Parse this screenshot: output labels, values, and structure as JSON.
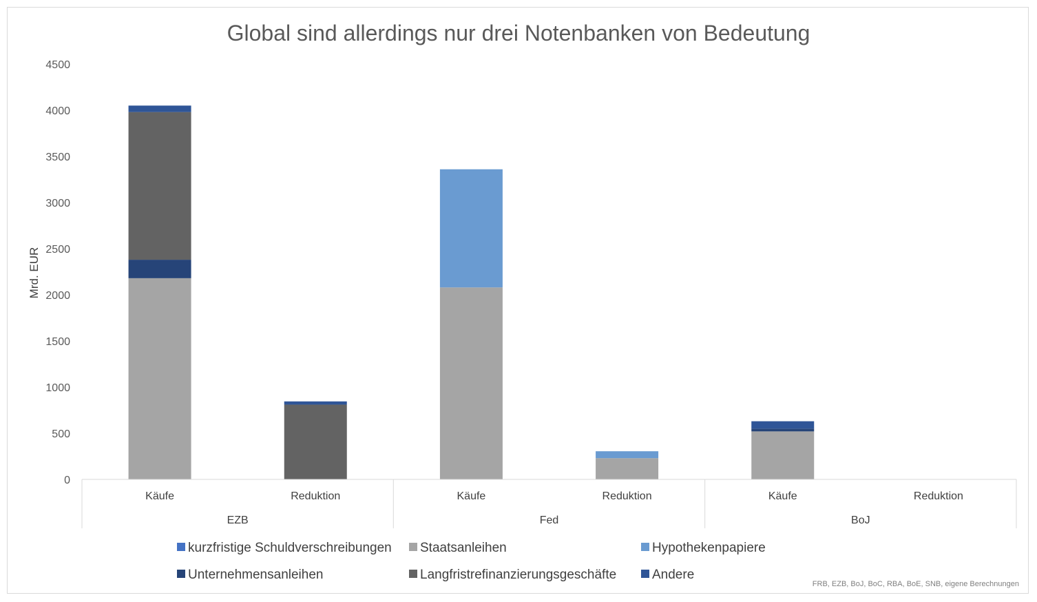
{
  "chart_data": {
    "type": "bar",
    "stacked": true,
    "title": "Global sind allerdings nur drei Notenbanken von Bedeutung",
    "ylabel": "Mrd. EUR",
    "ylim": [
      0,
      4500
    ],
    "yticks": [
      0,
      500,
      1000,
      1500,
      2000,
      2500,
      3000,
      3500,
      4000,
      4500
    ],
    "groups": [
      {
        "name": "EZB",
        "categories": [
          "Käufe",
          "Reduktion"
        ]
      },
      {
        "name": "Fed",
        "categories": [
          "Käufe",
          "Reduktion"
        ]
      },
      {
        "name": "BoJ",
        "categories": [
          "Käufe",
          "Reduktion"
        ]
      }
    ],
    "series": [
      {
        "name": "kurzfristige Schuldverschreibungen",
        "color": "#4472c4",
        "values": [
          0,
          0,
          0,
          0,
          0,
          0
        ]
      },
      {
        "name": "Staatsanleihen",
        "color": "#a5a5a5",
        "values": [
          2180,
          0,
          2080,
          230,
          520,
          0
        ]
      },
      {
        "name": "Hypothekenpapiere",
        "color": "#6a9bd1",
        "values": [
          0,
          0,
          1280,
          75,
          0,
          0
        ]
      },
      {
        "name": "Unternehmensanleihen",
        "color": "#264478",
        "values": [
          200,
          0,
          0,
          0,
          30,
          0
        ]
      },
      {
        "name": "Langfristrefinanzierungsgeschäfte",
        "color": "#636363",
        "values": [
          1600,
          810,
          0,
          0,
          0,
          0
        ]
      },
      {
        "name": "Andere",
        "color": "#2f5597",
        "values": [
          70,
          35,
          0,
          0,
          80,
          0
        ]
      }
    ],
    "grid": false,
    "legend_position": "bottom",
    "source_note": "FRB, EZB, BoJ, BoC, RBA, BoE, SNB, eigene Berechnungen"
  }
}
